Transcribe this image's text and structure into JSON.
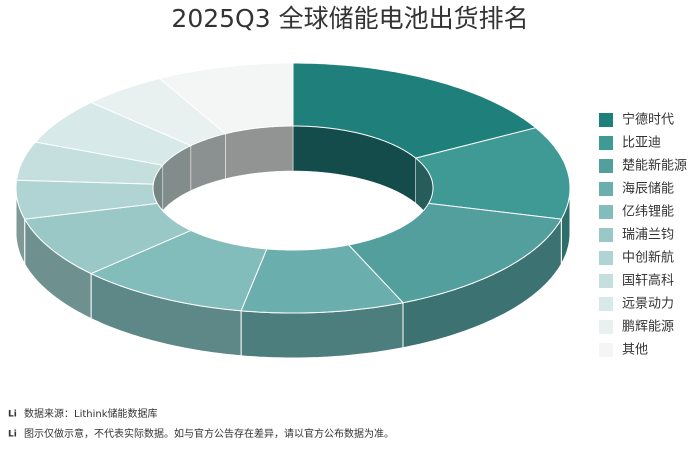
{
  "chart_data": {
    "type": "donut3d",
    "title": "2025Q3 全球储能电池出货排名",
    "categories": [
      "宁德时代",
      "比亚迪",
      "楚能新能源",
      "海辰储能",
      "亿纬锂能",
      "瑞浦兰钧",
      "中创新航",
      "国轩高科",
      "远景动力",
      "鹏辉能源",
      "其他"
    ],
    "values": [
      17,
      12,
      14.5,
      9.5,
      10,
      8,
      5,
      5,
      6,
      5,
      8
    ],
    "colors": [
      "#1f7f7b",
      "#3f9995",
      "#539f9d",
      "#6aafad",
      "#82bcbb",
      "#99c8c7",
      "#afd4d3",
      "#c4dfde",
      "#d7e9e8",
      "#e8f1f0",
      "#f4f6f6"
    ],
    "legend": "right"
  },
  "footer": {
    "logo": "Li",
    "source": "数据来源：Lithink储能数据库",
    "note": "图示仅做示意，不代表实际数据。如与官方公告存在差异，请以官方公布数据为准。"
  }
}
